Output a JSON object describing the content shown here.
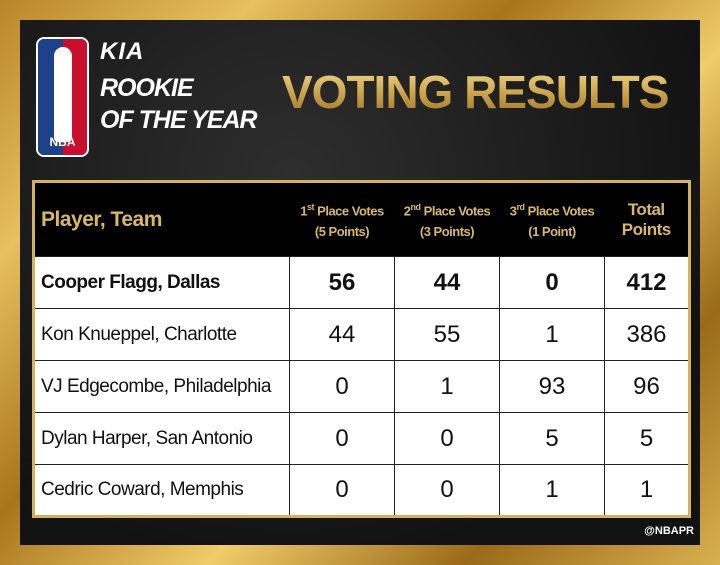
{
  "branding": {
    "league": "NBA",
    "sponsor": "KIA",
    "award_line1": "ROOKIE",
    "award_line2": "OF THE YEAR"
  },
  "title": "VOTING RESULTS",
  "table": {
    "headers": {
      "player": "Player, Team",
      "first": {
        "ordinal": "1",
        "suffix": "st",
        "label": "Place Votes",
        "points": "(5 Points)"
      },
      "second": {
        "ordinal": "2",
        "suffix": "nd",
        "label": "Place Votes",
        "points": "(3 Points)"
      },
      "third": {
        "ordinal": "3",
        "suffix": "rd",
        "label": "Place Votes",
        "points": "(1 Point)"
      },
      "total": {
        "line1": "Total",
        "line2": "Points"
      }
    },
    "rows": [
      {
        "player": "Cooper Flagg, Dallas",
        "first": "56",
        "second": "44",
        "third": "0",
        "total": "412"
      },
      {
        "player": "Kon Knueppel, Charlotte",
        "first": "44",
        "second": "55",
        "third": "1",
        "total": "386"
      },
      {
        "player": "VJ Edgecombe, Philadelphia",
        "first": "0",
        "second": "1",
        "third": "93",
        "total": "96"
      },
      {
        "player": "Dylan Harper, San Antonio",
        "first": "0",
        "second": "0",
        "third": "5",
        "total": "5"
      },
      {
        "player": "Cedric Coward, Memphis",
        "first": "0",
        "second": "0",
        "third": "1",
        "total": "1"
      }
    ]
  },
  "credit": "@NBAPR",
  "colors": {
    "gold": "#d8b868",
    "panel": "#1a1a1a",
    "nba_blue": "#1d428a",
    "nba_red": "#c8102e"
  }
}
